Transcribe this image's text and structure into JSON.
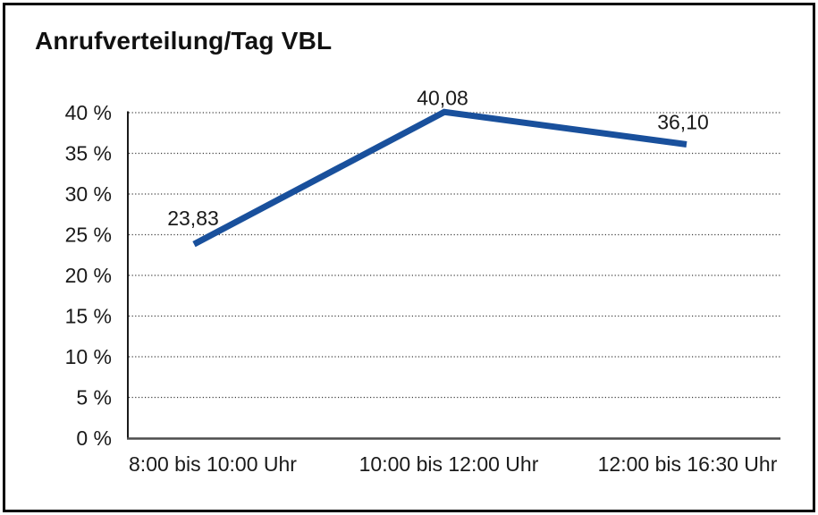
{
  "chart_data": {
    "type": "line",
    "title": "Anrufverteilung/Tag VBL",
    "categories": [
      "8:00 bis 10:00 Uhr",
      "10:00 bis 12:00 Uhr",
      "12:00 bis 16:30 Uhr"
    ],
    "series": [
      {
        "name": "Anrufverteilung/Tag VBL",
        "values": [
          23.83,
          40.08,
          36.1
        ],
        "value_labels": [
          "23,83",
          "40,08",
          "36,10"
        ],
        "color": "#19509C"
      }
    ],
    "xlabel": "",
    "ylabel": "",
    "ylim": [
      0,
      40
    ],
    "ytick_step": 5,
    "yticks": [
      {
        "value": 0,
        "label": "0 %"
      },
      {
        "value": 5,
        "label": "5 %"
      },
      {
        "value": 10,
        "label": "10 %"
      },
      {
        "value": 15,
        "label": "15 %"
      },
      {
        "value": 20,
        "label": "20 %"
      },
      {
        "value": 25,
        "label": "25 %"
      },
      {
        "value": 30,
        "label": "30 %"
      },
      {
        "value": 35,
        "label": "35 %"
      },
      {
        "value": 40,
        "label": "40 %"
      }
    ],
    "grid": "horizontal-dotted",
    "legend": "none"
  },
  "colors": {
    "background": "#ffffff",
    "border": "#000000",
    "line": "#19509C",
    "grid": "#3d3d3d",
    "y_axis": "#1a1a1a",
    "baseline": "#4d4d4d",
    "text": "#1a1a1a"
  }
}
